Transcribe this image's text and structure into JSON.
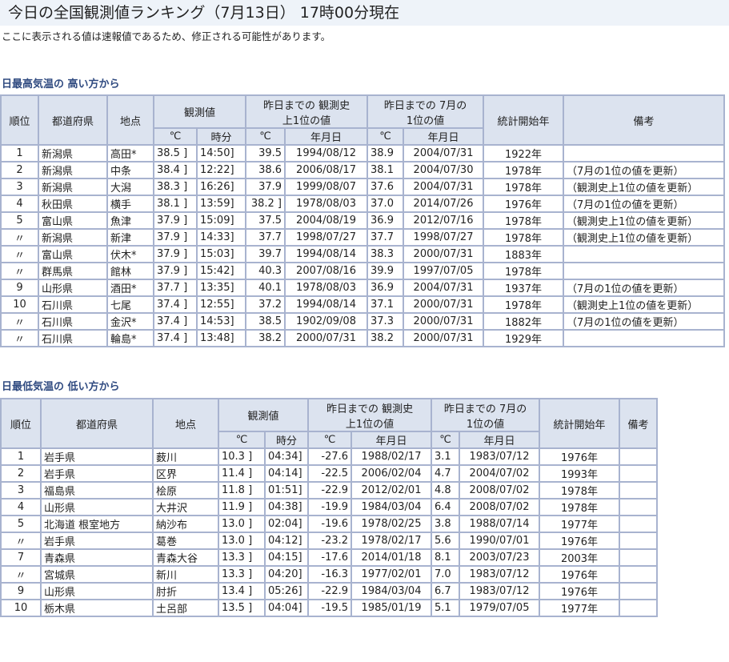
{
  "title": "今日の全国観測値ランキング（7月13日） 17時00分現在",
  "note": "ここに表示される値は速報値であるため、修正される可能性があります。",
  "headers": {
    "rank": "順位",
    "pref": "都道府県",
    "point": "地点",
    "obs": "観測値",
    "hist": "昨日までの 観測史上1位の値",
    "july": "昨日までの 7月の1位の値",
    "start": "統計開始年",
    "remark": "備考",
    "deg": "℃",
    "time": "時分",
    "date": "年月日"
  },
  "high": {
    "heading": "日最高気温の 高い方から",
    "rows": [
      [
        "1",
        "新潟県",
        "高田*",
        "38.5 ]",
        "14:50]",
        "39.5",
        "1994/08/12",
        "38.9",
        "2004/07/31",
        "1922年",
        ""
      ],
      [
        "2",
        "新潟県",
        "中条",
        "38.4 ]",
        "12:22]",
        "38.6",
        "2006/08/17",
        "38.1",
        "2004/07/30",
        "1978年",
        "（7月の1位の値を更新）"
      ],
      [
        "3",
        "新潟県",
        "大潟",
        "38.3 ]",
        "16:26]",
        "37.9",
        "1999/08/07",
        "37.6",
        "2004/07/31",
        "1978年",
        "（観測史上1位の値を更新）"
      ],
      [
        "4",
        "秋田県",
        "横手",
        "38.1 ]",
        "13:59]",
        "38.2 ]",
        "1978/08/03",
        "37.0",
        "2014/07/26",
        "1976年",
        "（7月の1位の値を更新）"
      ],
      [
        "5",
        "富山県",
        "魚津",
        "37.9 ]",
        "15:09]",
        "37.5",
        "2004/08/19",
        "36.9",
        "2012/07/16",
        "1978年",
        "（観測史上1位の値を更新）"
      ],
      [
        "〃",
        "新潟県",
        "新津",
        "37.9 ]",
        "14:33]",
        "37.7",
        "1998/07/27",
        "37.7",
        "1998/07/27",
        "1978年",
        "（観測史上1位の値を更新）"
      ],
      [
        "〃",
        "富山県",
        "伏木*",
        "37.9 ]",
        "15:03]",
        "39.7",
        "1994/08/14",
        "38.3",
        "2000/07/31",
        "1883年",
        ""
      ],
      [
        "〃",
        "群馬県",
        "館林",
        "37.9 ]",
        "15:42]",
        "40.3",
        "2007/08/16",
        "39.9",
        "1997/07/05",
        "1978年",
        ""
      ],
      [
        "9",
        "山形県",
        "酒田*",
        "37.7 ]",
        "13:35]",
        "40.1",
        "1978/08/03",
        "36.9",
        "2004/07/31",
        "1937年",
        "（7月の1位の値を更新）"
      ],
      [
        "10",
        "石川県",
        "七尾",
        "37.4 ]",
        "12:55]",
        "37.2",
        "1994/08/14",
        "37.1",
        "2000/07/31",
        "1978年",
        "（観測史上1位の値を更新）"
      ],
      [
        "〃",
        "石川県",
        "金沢*",
        "37.4 ]",
        "14:53]",
        "38.5",
        "1902/09/08",
        "37.3",
        "2000/07/31",
        "1882年",
        "（7月の1位の値を更新）"
      ],
      [
        "〃",
        "石川県",
        "輪島*",
        "37.4 ]",
        "13:48]",
        "38.2",
        "2000/07/31",
        "38.2",
        "2000/07/31",
        "1929年",
        ""
      ]
    ]
  },
  "low": {
    "heading": "日最低気温の 低い方から",
    "rows": [
      [
        "1",
        "岩手県",
        "薮川",
        "10.3 ]",
        "04:34]",
        "-27.6",
        "1988/02/17",
        "3.1",
        "1983/07/12",
        "1976年",
        ""
      ],
      [
        "2",
        "岩手県",
        "区界",
        "11.4 ]",
        "04:14]",
        "-22.5",
        "2006/02/04",
        "4.7",
        "2004/07/02",
        "1993年",
        ""
      ],
      [
        "3",
        "福島県",
        "桧原",
        "11.8 ]",
        "01:51]",
        "-22.9",
        "2012/02/01",
        "4.8",
        "2008/07/02",
        "1978年",
        ""
      ],
      [
        "4",
        "山形県",
        "大井沢",
        "11.9 ]",
        "04:38]",
        "-19.9",
        "1984/03/04",
        "6.4",
        "2008/07/02",
        "1978年",
        ""
      ],
      [
        "5",
        "北海道 根室地方",
        "納沙布",
        "13.0 ]",
        "02:04]",
        "-19.6",
        "1978/02/25",
        "3.8",
        "1988/07/14",
        "1977年",
        ""
      ],
      [
        "〃",
        "岩手県",
        "葛巻",
        "13.0 ]",
        "04:12]",
        "-23.2",
        "1978/02/17",
        "5.6",
        "1990/07/01",
        "1976年",
        ""
      ],
      [
        "7",
        "青森県",
        "青森大谷",
        "13.3 ]",
        "04:15]",
        "-17.6",
        "2014/01/18",
        "8.1",
        "2003/07/23",
        "2003年",
        ""
      ],
      [
        "〃",
        "宮城県",
        "新川",
        "13.3 ]",
        "04:20]",
        "-16.3",
        "1977/02/01",
        "7.0",
        "1983/07/12",
        "1976年",
        ""
      ],
      [
        "9",
        "山形県",
        "肘折",
        "13.4 ]",
        "05:26]",
        "-22.9",
        "1984/03/04",
        "6.7",
        "1983/07/12",
        "1976年",
        ""
      ],
      [
        "10",
        "栃木県",
        "土呂部",
        "13.5 ]",
        "04:04]",
        "-19.5",
        "1985/01/19",
        "5.1",
        "1979/07/05",
        "1977年",
        ""
      ]
    ]
  }
}
